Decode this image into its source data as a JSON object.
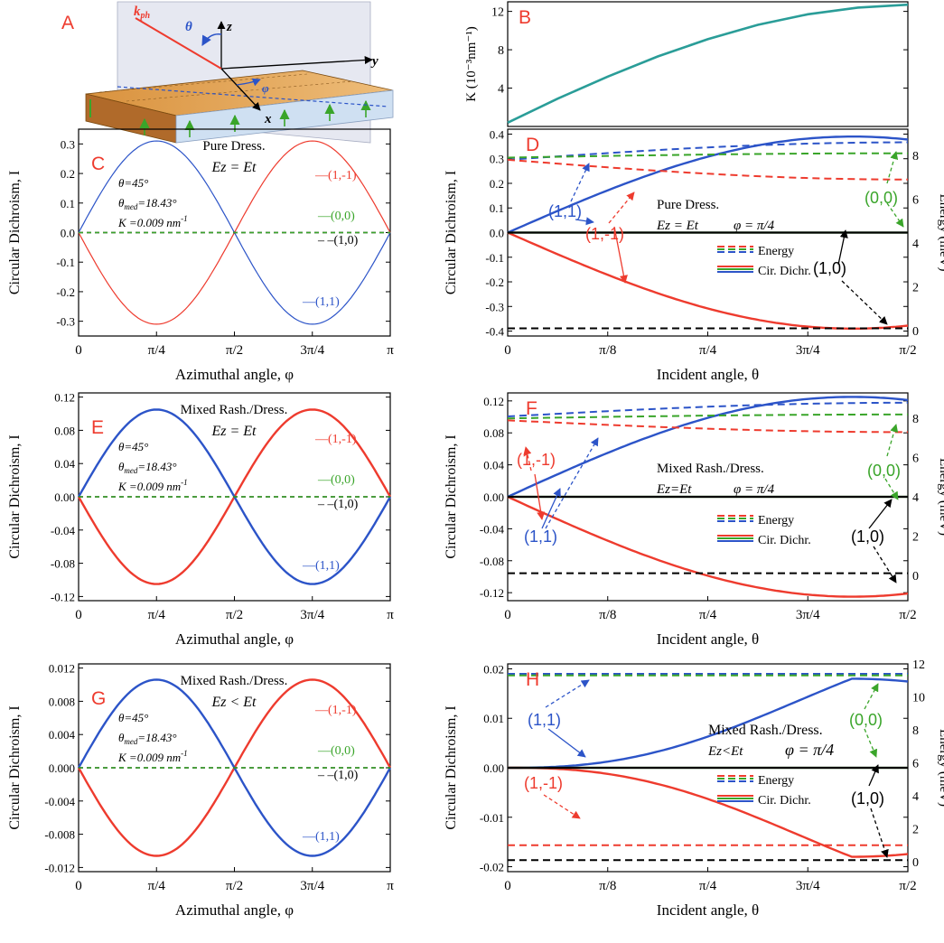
{
  "figure": {
    "xlabel_phi": "Azimuthal angle, φ",
    "xlabel_theta": "Incident angle, θ",
    "ylabel_cd_phi": "Circular Dichroism, I",
    "ylabel_energy": "Energy (meV)",
    "phi_ticks": [
      "0",
      "π/4",
      "π/2",
      "3π/4",
      "π"
    ],
    "theta_ticks": [
      "0",
      "π/8",
      "π/4",
      "3π/4",
      "π/2"
    ],
    "legend_energy": "Energy",
    "legend_cd": "Cir. Dichr.",
    "param_theta": "θ=45°",
    "param_theta_med": "θ",
    "param_theta_med_sub": "med",
    "param_theta_med_val": "=18.43°",
    "param_K": "K =0.009 nm",
    "param_K_exp": "-1",
    "phi_quarter": "φ = π/4",
    "colors": {
      "red": "#ee3b2e",
      "blue": "#2c54c8",
      "green": "#3aa52a",
      "black": "#000000",
      "teal": "#2a9d98"
    }
  },
  "panel_a": {
    "label": "A",
    "k_ph": "k",
    "k_ph_sub": "ph",
    "theta": "θ",
    "phi": "φ",
    "axis_x": "x",
    "axis_y": "y",
    "axis_z": "z"
  },
  "chart_data": [
    {
      "panel": "B",
      "type": "line",
      "ylabel": "K (10⁻³nm⁻¹)",
      "x": [
        0,
        0.1963,
        0.3927,
        0.589,
        0.7854,
        0.9817,
        1.1781,
        1.3744,
        1.5708
      ],
      "series": [
        {
          "values": [
            0.4,
            2.9,
            5.2,
            7.3,
            9.1,
            10.6,
            11.7,
            12.4,
            12.7
          ],
          "color": "#2a9d98"
        }
      ],
      "ylim": [
        0,
        13
      ],
      "yticks": [
        4,
        8,
        12
      ]
    },
    {
      "panel": "C",
      "type": "line",
      "title": "Pure Dress.",
      "subtitle": "E_z = E_t",
      "x_fn": "phi",
      "xlim": [
        0,
        3.1416
      ],
      "ylim": [
        -0.35,
        0.35
      ],
      "yticks": [
        "-0.3",
        "-0.2",
        "-0.1",
        "0.0",
        "0.1",
        "0.2",
        "0.3"
      ],
      "amplitude": 0.31,
      "series": [
        {
          "name": "(1,-1)",
          "sign": -1,
          "color": "#ee3b2e"
        },
        {
          "name": "(1,1)",
          "sign": 1,
          "color": "#2c54c8"
        },
        {
          "name": "(0,0)",
          "sign": 0,
          "color": "#3aa52a"
        },
        {
          "name": "(1,0)",
          "sign": 0,
          "color": "#000000"
        }
      ]
    },
    {
      "panel": "D",
      "type": "line",
      "title": "Pure Dress.",
      "subtitle": "E_z = E_t",
      "ylim": [
        -0.42,
        0.42
      ],
      "yticks": [
        "-0.4",
        "-0.3",
        "-0.2",
        "-0.1",
        "0.0",
        "0.1",
        "0.2",
        "0.3",
        "0.4"
      ],
      "y2lim": [
        -0.25,
        9.2
      ],
      "y2ticks": [
        "0",
        "2",
        "4",
        "6",
        "8"
      ],
      "cd_amplitude": 0.39,
      "series": [
        {
          "name": "(1,1)",
          "kind": "cd",
          "sign": 1,
          "color": "#2c54c8"
        },
        {
          "name": "(1,-1)",
          "kind": "cd",
          "sign": -1,
          "color": "#ee3b2e"
        },
        {
          "name": "(0,0)",
          "kind": "cd",
          "sign": 0,
          "color": "#3aa52a"
        },
        {
          "name": "(1,0)",
          "kind": "cd",
          "sign": 0,
          "color": "#000000"
        },
        {
          "name": "(1,1)",
          "kind": "energy",
          "y0": 7.8,
          "y1": 8.6,
          "color": "#2c54c8"
        },
        {
          "name": "(0,0)",
          "kind": "energy",
          "y0": 7.9,
          "y1": 8.1,
          "color": "#3aa52a"
        },
        {
          "name": "(1,-1)",
          "kind": "energy",
          "y0": 7.8,
          "y1": 6.9,
          "color": "#ee3b2e"
        },
        {
          "name": "(1,0)",
          "kind": "energy",
          "y0": 0.1,
          "y1": 0.1,
          "color": "#000000"
        }
      ]
    },
    {
      "panel": "E",
      "type": "line",
      "title": "Mixed Rash./Dress.",
      "subtitle": "E_z = E_t",
      "ylim": [
        -0.125,
        0.125
      ],
      "yticks": [
        "-0.12",
        "-0.08",
        "-0.04",
        "0.00",
        "0.04",
        "0.08",
        "0.12"
      ],
      "amplitude": 0.105,
      "series": [
        {
          "name": "(1,-1)",
          "sign": -1,
          "color": "#ee3b2e"
        },
        {
          "name": "(1,1)",
          "sign": 1,
          "color": "#2c54c8"
        },
        {
          "name": "(0,0)",
          "sign": 0,
          "color": "#3aa52a"
        },
        {
          "name": "(1,0)",
          "sign": 0,
          "color": "#000000"
        }
      ]
    },
    {
      "panel": "F",
      "type": "line",
      "title": "Mixed Rash./Dress.",
      "subtitle": "E_z=E_t",
      "ylim": [
        -0.13,
        0.13
      ],
      "yticks": [
        "-0.12",
        "-0.08",
        "-0.04",
        "0.00",
        "0.04",
        "0.08",
        "0.12"
      ],
      "y2lim": [
        -1.3,
        9.3
      ],
      "y2ticks": [
        "0",
        "2",
        "4",
        "6",
        "8"
      ],
      "cd_amplitude": 0.125,
      "series": [
        {
          "name": "(1,1)",
          "kind": "cd",
          "sign": 1,
          "color": "#2c54c8"
        },
        {
          "name": "(1,-1)",
          "kind": "cd",
          "sign": -1,
          "color": "#ee3b2e"
        },
        {
          "name": "(0,0)",
          "kind": "cd",
          "sign": 0,
          "color": "#3aa52a"
        },
        {
          "name": "(1,0)",
          "kind": "cd",
          "sign": 0,
          "color": "#000000"
        },
        {
          "name": "(1,1)",
          "kind": "energy",
          "y0": 8.1,
          "y1": 8.8,
          "color": "#2c54c8"
        },
        {
          "name": "(0,0)",
          "kind": "energy",
          "y0": 8.0,
          "y1": 8.2,
          "color": "#3aa52a"
        },
        {
          "name": "(1,-1)",
          "kind": "energy",
          "y0": 7.9,
          "y1": 7.3,
          "color": "#ee3b2e"
        },
        {
          "name": "(1,0)",
          "kind": "energy",
          "y0": 0.1,
          "y1": 0.1,
          "color": "#000000"
        }
      ]
    },
    {
      "panel": "G",
      "type": "line",
      "title": "Mixed Rash./Dress.",
      "subtitle": "E_z < E_t",
      "ylim": [
        -0.0125,
        0.0125
      ],
      "yticks": [
        "-0.012",
        "-0.008",
        "-0.004",
        "0.000",
        "0.004",
        "0.008",
        "0.012"
      ],
      "amplitude": 0.0106,
      "series": [
        {
          "name": "(1,-1)",
          "sign": -1,
          "color": "#ee3b2e"
        },
        {
          "name": "(1,1)",
          "sign": 1,
          "color": "#2c54c8"
        },
        {
          "name": "(0,0)",
          "sign": 0,
          "color": "#3aa52a"
        },
        {
          "name": "(1,0)",
          "sign": 0,
          "color": "#000000"
        }
      ]
    },
    {
      "panel": "H",
      "type": "line",
      "title": "Mixed Rash./Dress.",
      "subtitle": "E_z<E_t",
      "ylim": [
        -0.021,
        0.021
      ],
      "yticks": [
        "-0.02",
        "-0.01",
        "0.00",
        "0.01",
        "0.02"
      ],
      "y2lim": [
        -0.6,
        12.0
      ],
      "y2ticks": [
        "0",
        "2",
        "4",
        "6",
        "8",
        "10",
        "12"
      ],
      "cd_amplitude": 0.018,
      "series": [
        {
          "name": "(1,1)",
          "kind": "cd",
          "sign": 1,
          "color": "#2c54c8"
        },
        {
          "name": "(1,-1)",
          "kind": "cd",
          "sign": -1,
          "color": "#ee3b2e"
        },
        {
          "name": "(0,0)",
          "kind": "cd",
          "sign": 0,
          "color": "#3aa52a"
        },
        {
          "name": "(1,0)",
          "kind": "cd",
          "sign": 0,
          "color": "#000000"
        },
        {
          "name": "(1,1)",
          "kind": "energy",
          "y0": 11.4,
          "y1": 11.4,
          "color": "#2c54c8"
        },
        {
          "name": "(0,0)",
          "kind": "energy",
          "y0": 11.3,
          "y1": 11.3,
          "color": "#3aa52a"
        },
        {
          "name": "(1,-1)",
          "kind": "energy",
          "y0": 1.0,
          "y1": 1.0,
          "color": "#ee3b2e"
        },
        {
          "name": "(1,0)",
          "kind": "energy",
          "y0": 0.1,
          "y1": 0.1,
          "color": "#000000"
        }
      ]
    }
  ]
}
